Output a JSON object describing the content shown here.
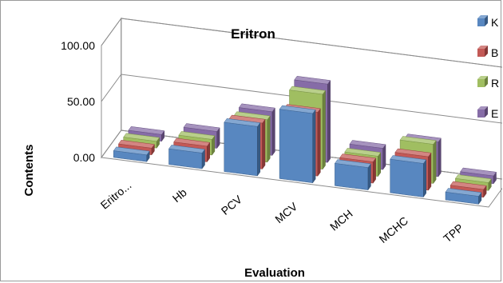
{
  "chart_data": {
    "type": "bar",
    "subtype": "3d-clustered-depth",
    "title": "Eritron",
    "xlabel": "Evaluation",
    "ylabel": "Contents",
    "ylim": [
      0,
      100
    ],
    "yticks": [
      "0.00",
      "50.00",
      "100.00"
    ],
    "grid": true,
    "legend_position": "right",
    "categories": [
      "Eritro...",
      "Hb",
      "PCV",
      "MCV",
      "MCH",
      "MCHC",
      "TPP"
    ],
    "series": [
      {
        "name": "K",
        "color": "#4f81bd",
        "values": [
          6,
          14,
          44,
          62,
          20,
          30,
          7
        ]
      },
      {
        "name": "B",
        "color": "#c0504d",
        "values": [
          6,
          14,
          41,
          57,
          19,
          30,
          7
        ]
      },
      {
        "name": "R",
        "color": "#9bbb59",
        "values": [
          6,
          14,
          38,
          67,
          18,
          35,
          7
        ]
      },
      {
        "name": "E",
        "color": "#8064a2",
        "values": [
          6,
          15,
          39,
          70,
          19,
          31,
          7
        ]
      }
    ]
  }
}
